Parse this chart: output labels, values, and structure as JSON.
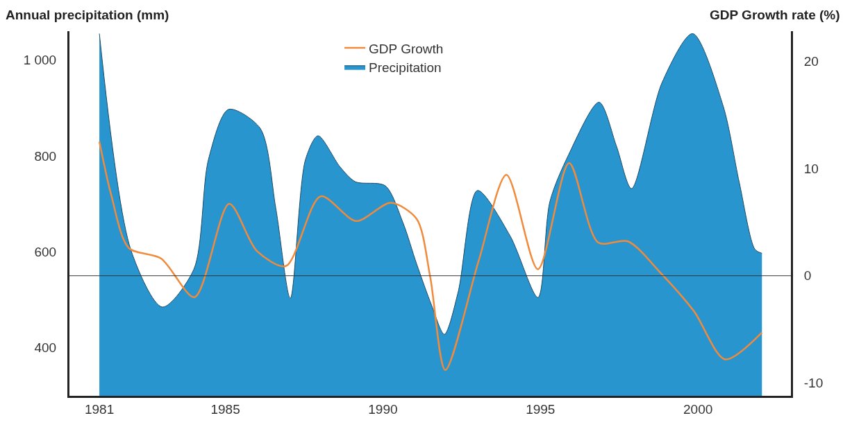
{
  "chart_data": {
    "type": "area",
    "ylabel": "Annual precipitation (mm)",
    "y2label": "GDP Growth rate (%)",
    "xlim": [
      1980.05,
      2002.95
    ],
    "xticks": [
      1981,
      1985,
      1990,
      1995,
      2000
    ],
    "ylim": [
      300,
      1060
    ],
    "yticks": [
      400,
      600,
      800,
      {
        "value": 1000,
        "label": "1 000"
      }
    ],
    "y2lim": [
      -11.2,
      22.8
    ],
    "y2ticks": [
      -10,
      0,
      10,
      20
    ],
    "grid": false,
    "legend": "top",
    "ref_lines": [
      {
        "axis": "y2",
        "value": 0,
        "color": "#333333"
      }
    ],
    "series": [
      {
        "name": "Precipitation",
        "color": "#2895cf",
        "x": [
          1981,
          1982,
          1983,
          1984,
          1984.46,
          1985.1,
          1986.1,
          1986.6,
          1987.06,
          1987.54,
          1987.94,
          1988.64,
          1989.13,
          1990.07,
          1990.63,
          1991.07,
          1991.55,
          1991.95,
          1992.39,
          1993,
          1994.04,
          1994.92,
          1995.3,
          1995.89,
          1996.86,
          1997.41,
          1997.89,
          1998.86,
          1999.83,
          2000.8,
          2001.31,
          2001.81,
          2002.03
        ],
        "values": [
          1055,
          604,
          485,
          564,
          792,
          897,
          858,
          691,
          503,
          792,
          842,
          777,
          746,
          738,
          662,
          575,
          488,
          428,
          517,
          728,
          633,
          505,
          705,
          802,
          912,
          821,
          732,
          953,
          1055,
          904,
          745,
          605,
          597
        ]
      },
      {
        "name": "GDP Growth",
        "type": "line",
        "axis": "y2",
        "color": "#f08a3c",
        "x": [
          1981,
          1981.37,
          1981.93,
          1982.96,
          1984.02,
          1985.12,
          1986,
          1986.92,
          1988.02,
          1989.15,
          1990.25,
          1991.07,
          1991.5,
          1991.98,
          1993.04,
          1993.92,
          1994.92,
          1995.91,
          1996.83,
          1997.78,
          1998.77,
          1999.87,
          2000.86,
          2002.03
        ],
        "values": [
          12.5,
          7.6,
          2.6,
          1.6,
          -2,
          6.7,
          2.3,
          0.9,
          7.4,
          5.1,
          6.8,
          5.3,
          -0.1,
          -8.8,
          1.4,
          9.4,
          0.6,
          10.5,
          3.1,
          3.2,
          0.4,
          -3.3,
          -7.8,
          -5.3
        ]
      }
    ]
  }
}
